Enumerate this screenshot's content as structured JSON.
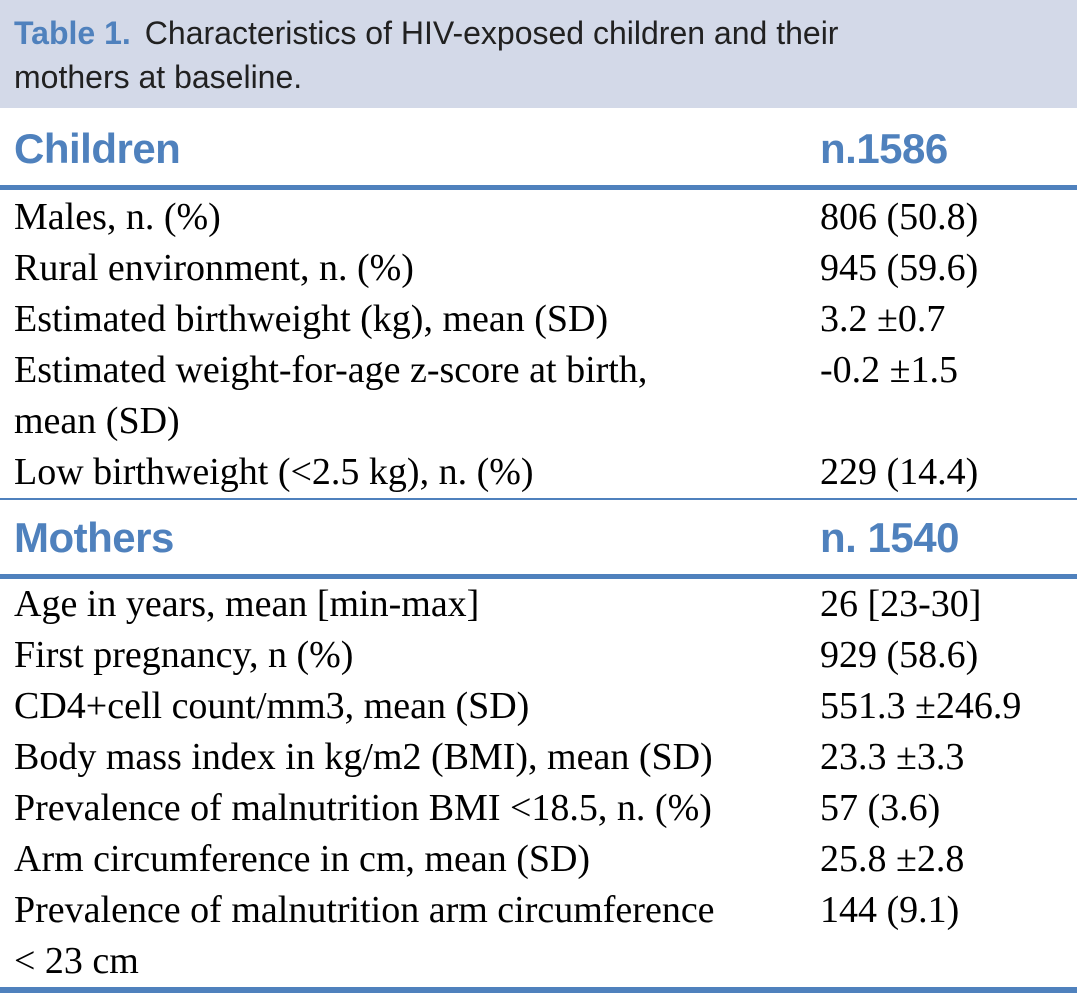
{
  "colors": {
    "accent_blue": "#4f81bd",
    "caption_background": "#d3d9e8",
    "body_text": "#000000"
  },
  "caption": {
    "label": "Table 1.",
    "text": "Characteristics of HIV-exposed children and their\nmothers at baseline."
  },
  "sections": [
    {
      "header": "Children",
      "count": "n.1586",
      "rows": [
        {
          "label": "Males, n. (%)",
          "value": "806 (50.8)"
        },
        {
          "label": "Rural environment, n. (%)",
          "value": "945 (59.6)"
        },
        {
          "label": "Estimated birthweight (kg), mean (SD)",
          "value": "3.2 ±0.7"
        },
        {
          "label": "Estimated weight-for-age z-score at birth,\nmean (SD)",
          "value": "-0.2 ±1.5"
        },
        {
          "label": "Low birthweight (<2.5 kg), n. (%)",
          "value": "229 (14.4)"
        }
      ]
    },
    {
      "header": "Mothers",
      "count": "n. 1540",
      "rows": [
        {
          "label": "Age in years, mean [min-max]",
          "value": "26 [23-30]"
        },
        {
          "label": "First pregnancy, n (%)",
          "value": "929 (58.6)"
        },
        {
          "label": "CD4+cell count/mm3, mean (SD)",
          "value": "551.3 ±246.9"
        },
        {
          "label": "Body mass index in kg/m2 (BMI), mean (SD)",
          "value": "23.3 ±3.3"
        },
        {
          "label": "Prevalence of malnutrition BMI <18.5, n. (%)",
          "value": "57 (3.6)"
        },
        {
          "label": "Arm circumference in cm, mean (SD)",
          "value": "25.8 ±2.8"
        },
        {
          "label": "Prevalence of malnutrition arm circumference\n< 23 cm",
          "value": "144 (9.1)"
        }
      ]
    }
  ]
}
